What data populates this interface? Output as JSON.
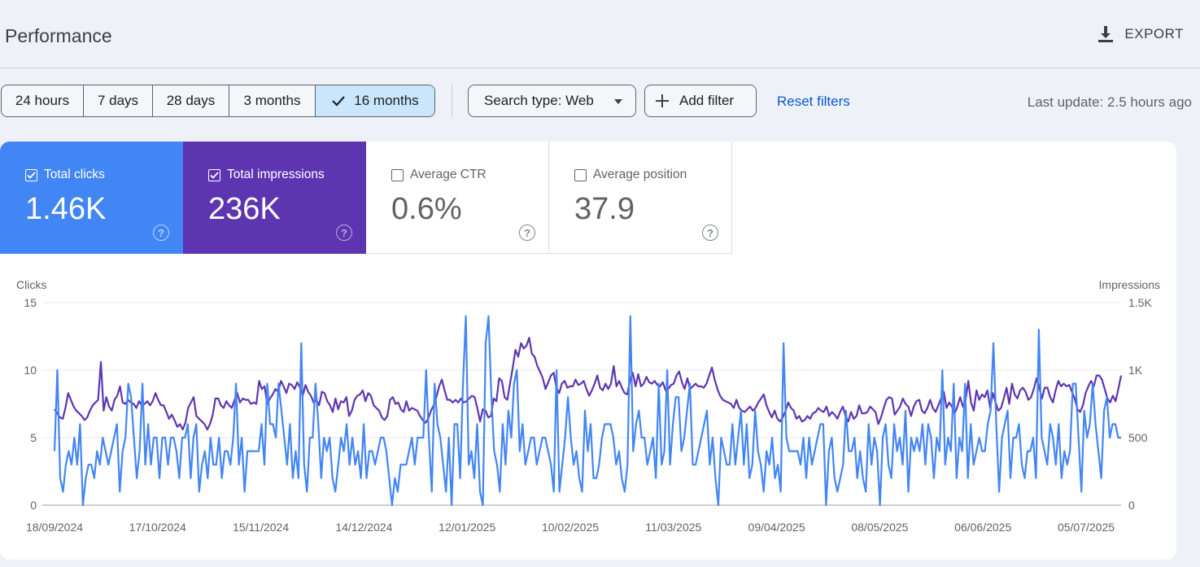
{
  "header": {
    "title": "Performance",
    "export_label": "EXPORT",
    "export_icon": "download-icon"
  },
  "filters": {
    "date_ranges": [
      {
        "label": "24 hours",
        "selected": false
      },
      {
        "label": "7 days",
        "selected": false
      },
      {
        "label": "28 days",
        "selected": false
      },
      {
        "label": "3 months",
        "selected": false
      },
      {
        "label": "16 months",
        "selected": true
      }
    ],
    "search_type": "Search type: Web",
    "add_filter": "Add filter",
    "reset": "Reset filters",
    "last_update": "Last update: 2.5 hours ago"
  },
  "metrics": {
    "clicks": {
      "label": "Total clicks",
      "value": "1.46K",
      "checked": true,
      "color": "#4285f4"
    },
    "impressions": {
      "label": "Total impressions",
      "value": "236K",
      "checked": true,
      "color": "#5e35b1"
    },
    "ctr": {
      "label": "Average CTR",
      "value": "0.6%",
      "checked": false
    },
    "position": {
      "label": "Average position",
      "value": "37.9",
      "checked": false
    },
    "help_glyph": "?"
  },
  "chart_data": {
    "type": "line",
    "left_axis_label": "Clicks",
    "right_axis_label": "Impressions",
    "left_ticks": [
      "0",
      "5",
      "10",
      "15"
    ],
    "right_ticks": [
      "0",
      "500",
      "1K",
      "1.5K"
    ],
    "left_ylim": [
      0,
      15
    ],
    "right_ylim": [
      0,
      1500
    ],
    "grid": true,
    "x_tick_labels": [
      "18/09/2024",
      "17/10/2024",
      "15/11/2024",
      "14/12/2024",
      "12/01/2025",
      "10/02/2025",
      "11/03/2025",
      "09/04/2025",
      "08/05/2025",
      "06/06/2025",
      "05/07/2025"
    ],
    "series": [
      {
        "name": "Clicks",
        "color": "#4285f4",
        "axis": "left",
        "values": [
          4,
          10,
          2,
          1,
          3,
          4,
          3,
          5,
          3,
          6,
          0,
          2,
          3,
          3,
          2,
          4,
          3,
          5,
          4,
          3,
          4,
          5,
          6,
          1,
          4,
          5,
          9,
          8,
          5,
          2,
          4,
          9,
          3,
          6,
          3,
          5,
          5,
          2,
          5,
          5,
          3,
          5,
          5,
          4,
          2,
          5,
          5,
          6,
          2,
          5,
          6,
          1,
          3,
          4,
          2,
          5,
          3,
          3,
          5,
          2,
          4,
          4,
          3,
          5,
          9,
          3,
          5,
          1,
          4,
          4,
          4,
          4,
          4,
          6,
          3,
          9,
          6,
          6,
          5,
          9,
          7,
          5,
          3,
          6,
          2,
          4,
          2,
          12,
          3,
          1,
          5,
          5,
          9,
          6,
          2,
          5,
          4,
          5,
          2,
          1,
          3,
          5,
          4,
          6,
          3,
          5,
          3,
          4,
          2,
          6,
          2,
          4,
          4,
          3,
          4,
          5,
          5,
          4,
          2,
          0,
          2,
          1,
          3,
          3,
          3,
          4,
          5,
          3,
          5,
          5,
          5,
          10,
          5,
          1,
          9,
          6,
          5,
          3,
          1,
          5,
          0,
          6,
          6,
          2,
          9,
          14,
          3,
          4,
          2,
          6,
          1,
          0,
          12,
          14,
          8,
          4,
          3,
          1,
          6,
          3,
          7,
          5,
          9,
          10,
          4,
          6,
          3,
          4,
          5,
          5,
          3,
          4,
          5,
          5,
          4,
          3,
          1,
          10,
          1,
          3,
          5,
          8,
          5,
          3,
          4,
          2,
          1,
          7,
          4,
          6,
          2,
          2,
          3,
          5,
          6,
          6,
          6,
          5,
          3,
          4,
          2,
          1,
          3,
          14,
          4,
          6,
          7,
          5,
          5,
          3,
          4,
          5,
          2,
          9,
          3,
          4,
          10,
          3,
          6,
          8,
          8,
          4,
          5,
          7,
          9,
          3,
          3,
          4,
          5,
          6,
          7,
          3,
          5,
          2,
          0,
          5,
          4,
          3,
          3,
          6,
          3,
          5,
          7,
          3,
          6,
          2,
          3,
          7,
          4,
          3,
          1,
          4,
          3,
          5,
          2,
          3,
          1,
          12,
          5,
          4,
          4,
          4,
          4,
          3,
          5,
          2,
          5,
          3,
          4,
          5,
          6,
          6,
          0,
          4,
          5,
          2,
          1,
          2,
          3,
          7,
          4,
          4,
          5,
          2,
          4,
          2,
          1,
          6,
          3,
          5,
          4,
          0,
          5,
          6,
          3,
          2,
          6,
          4,
          5,
          3,
          7,
          1,
          5,
          4,
          5,
          4,
          6,
          3,
          6,
          5,
          2,
          5,
          4,
          10,
          3,
          5,
          4,
          9,
          2,
          5,
          4,
          9,
          2,
          6,
          3,
          4,
          5,
          4,
          4,
          6,
          7,
          12,
          6,
          1,
          5,
          6,
          7,
          2,
          5,
          5,
          6,
          3,
          2,
          4,
          4,
          5,
          2,
          13,
          5,
          4,
          3,
          6,
          5,
          3,
          6,
          2,
          4,
          3,
          4,
          9,
          9,
          5,
          1,
          7,
          5,
          6,
          9,
          6,
          4,
          2,
          7,
          8,
          5,
          6,
          6,
          5,
          5
        ]
      },
      {
        "name": "Impressions",
        "color": "#5e35b1",
        "axis": "right",
        "values": [
          710,
          680,
          650,
          640,
          720,
          830,
          780,
          730,
          700,
          680,
          660,
          630,
          650,
          700,
          740,
          760,
          780,
          1060,
          700,
          800,
          730,
          700,
          780,
          810,
          880,
          760,
          750,
          780,
          760,
          750,
          720,
          770,
          740,
          750,
          770,
          740,
          770,
          830,
          780,
          740,
          740,
          690,
          640,
          670,
          630,
          580,
          600,
          560,
          610,
          720,
          760,
          800,
          660,
          640,
          620,
          600,
          560,
          600,
          670,
          790,
          790,
          740,
          720,
          770,
          740,
          720,
          780,
          830,
          760,
          790,
          780,
          780,
          750,
          760,
          750,
          920,
          860,
          880,
          750,
          790,
          820,
          860,
          840,
          920,
          880,
          830,
          900,
          890,
          860,
          910,
          870,
          810,
          890,
          840,
          810,
          760,
          780,
          740,
          840,
          830,
          770,
          740,
          690,
          790,
          710,
          770,
          760,
          800,
          660,
          700,
          780,
          810,
          820,
          850,
          770,
          830,
          810,
          740,
          720,
          700,
          650,
          630,
          660,
          780,
          800,
          750,
          760,
          710,
          690,
          770,
          700,
          720,
          710,
          700,
          660,
          630,
          610,
          640,
          700,
          740,
          800,
          880,
          930,
          850,
          780,
          780,
          760,
          780,
          760,
          790,
          760,
          770,
          790,
          810,
          800,
          720,
          620,
          710,
          700,
          650,
          660,
          790,
          770,
          940,
          920,
          800,
          780,
          900,
          1020,
          1150,
          1100,
          1200,
          1160,
          1180,
          1240,
          1120,
          1100,
          1030,
          990,
          940,
          860,
          910,
          960,
          980,
          870,
          830,
          900,
          920,
          870,
          880,
          880,
          930,
          890,
          900,
          920,
          860,
          810,
          850,
          900,
          960,
          870,
          850,
          900,
          860,
          900,
          1030,
          880,
          920,
          870,
          830,
          820,
          930,
          980,
          880,
          970,
          880,
          900,
          950,
          910,
          900,
          920,
          890,
          880,
          910,
          850,
          860,
          890,
          900,
          960,
          990,
          910,
          860,
          940,
          860,
          880,
          900,
          880,
          880,
          870,
          900,
          960,
          1020,
          930,
          860,
          810,
          780,
          770,
          760,
          750,
          720,
          780,
          720,
          700,
          690,
          710,
          730,
          700,
          720,
          760,
          790,
          820,
          740,
          690,
          650,
          700,
          640,
          620,
          650,
          700,
          760,
          720,
          700,
          640,
          660,
          620,
          630,
          660,
          640,
          680,
          690,
          720,
          700,
          690,
          730,
          660,
          690,
          670,
          640,
          690,
          730,
          660,
          620,
          690,
          640,
          660,
          740,
          680,
          680,
          690,
          730,
          710,
          690,
          600,
          650,
          720,
          780,
          800,
          790,
          670,
          700,
          730,
          790,
          750,
          730,
          660,
          730,
          770,
          780,
          700,
          680,
          720,
          780,
          720,
          690,
          740,
          790,
          840,
          720,
          760,
          730,
          680,
          730,
          800,
          730,
          780,
          920,
          760,
          700,
          850,
          780,
          820,
          800,
          850,
          720,
          830,
          760,
          700,
          720,
          790,
          870,
          750,
          900,
          820,
          790,
          850,
          870,
          840,
          780,
          800,
          860,
          940,
          870,
          790,
          870,
          870,
          800,
          760,
          850,
          920,
          880,
          900,
          880,
          890,
          840,
          790,
          710,
          690,
          740,
          830,
          880,
          920,
          880,
          960,
          960,
          930,
          860,
          790,
          760,
          810,
          770,
          860,
          960
        ]
      }
    ]
  }
}
